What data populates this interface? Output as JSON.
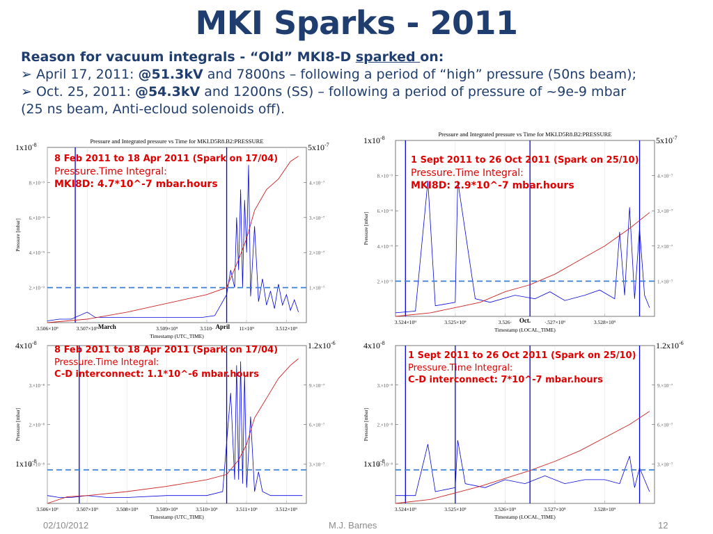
{
  "slide": {
    "title": "MKI Sparks - 2011",
    "intro_lead": "Reason for vacuum integrals - “Old” MKI8-D ",
    "intro_lead_underlined": "sparked ",
    "intro_lead_tail": "on:",
    "bullet1_pre": "➢ April 17, 2011: ",
    "bullet1_bold": "@51.3kV",
    "bullet1_post": " and 7800ns – following a period of “high” pressure (50ns beam);",
    "bullet2_pre": "➢ Oct. 25, 2011: ",
    "bullet2_bold": "@54.3kV",
    "bullet2_post": " and 1200ns (SS) – following a period of pressure of ~9e-9 mbar",
    "bullet2_cont": "(25 ns beam, Anti-ecloud solenoids off).",
    "footer_date": "02/10/2012",
    "footer_author": "M.J. Barnes",
    "footer_page": "12"
  },
  "colors": {
    "title": "#1f3d6e",
    "annotation": "#e00000",
    "pressure": "#0000dd",
    "integral": "#cc2222",
    "threshold": "#3a7fd5"
  },
  "chart_data": [
    {
      "type": "line",
      "id": "tl",
      "title": "Pressure and Integrated pressure vs Time for MKI.D5R8.B2:PRESSURE",
      "xlabel": "Timestamp (UTC_TIME)",
      "ylabel": "Pressure [mbar]",
      "xlim": [
        3506000000.0,
        3512500000.0
      ],
      "ylim": [
        0,
        1e-08
      ],
      "y2lim": [
        0,
        5e-07
      ],
      "xticks": [
        [
          "3.506×10⁹",
          3506000000.0
        ],
        [
          "3.507×10⁹",
          3507000000.0
        ],
        [
          "3.509×10⁹",
          3509000000.0
        ],
        [
          "3.510·",
          3510000000.0
        ],
        [
          "11×10⁹",
          3511000000.0
        ],
        [
          "3.512×10⁹",
          3512000000.0
        ]
      ],
      "yticks": [
        [
          "2.×10⁻⁹",
          2e-09
        ],
        [
          "4.×10⁻⁹",
          4e-09
        ],
        [
          "6.×10⁻⁹",
          6e-09
        ],
        [
          "8.×10⁻⁹",
          8e-09
        ]
      ],
      "y2ticks": [
        [
          "1.×10⁻⁷",
          1e-07
        ],
        [
          "2.×10⁻⁷",
          2e-07
        ],
        [
          "3.×10⁻⁷",
          3e-07
        ],
        [
          "4.×10⁻⁷",
          4e-07
        ]
      ],
      "corner_left": "1x10-8",
      "corner_right": "5x10-7",
      "month_labels": [
        [
          "March",
          3507500000.0
        ],
        [
          "April",
          3510400000.0
        ]
      ],
      "vlines": [
        3506700000.0,
        3510500000.0
      ],
      "threshold": 2e-09,
      "annotation": {
        "header": "8 Feb 2011 to 18 Apr 2011 (Spark on 17/04)",
        "sub": "Pressure.Time Integral:",
        "value": "MKI8D: 4.7*10^-7 mbar.hours"
      },
      "series": [
        {
          "name": "Pressure",
          "kind": "pressure",
          "x": [
            3506000000.0,
            3506300000.0,
            3506600000.0,
            3507000000.0,
            3507200000.0,
            3507600000.0,
            3508000000.0,
            3508500000.0,
            3509000000.0,
            3509500000.0,
            3509900000.0,
            3510200000.0,
            3510500000.0,
            3510600000.0,
            3510700000.0,
            3510750000.0,
            3510800000.0,
            3510850000.0,
            3510900000.0,
            3510950000.0,
            3511000000.0,
            3511050000.0,
            3511100000.0,
            3511200000.0,
            3511300000.0,
            3511400000.0,
            3511500000.0,
            3511600000.0,
            3511700000.0,
            3511800000.0,
            3511900000.0,
            3512000000.0,
            3512100000.0,
            3512200000.0,
            3512300000.0
          ],
          "y": [
            1e-10,
            2e-10,
            2e-10,
            6e-10,
            3e-10,
            3e-10,
            3e-10,
            3e-10,
            3e-10,
            3e-10,
            3e-10,
            4e-10,
            1.6e-09,
            3e-09,
            2e-09,
            6e-09,
            3e-09,
            7.6e-09,
            2e-09,
            7e-09,
            4e-09,
            9e-09,
            1.5e-09,
            5.5e-09,
            1.2e-09,
            2.5e-09,
            1e-09,
            1.8e-09,
            8e-10,
            2.2e-09,
            1e-09,
            1.6e-09,
            7e-10,
            1.3e-09,
            6e-10
          ]
        },
        {
          "name": "Integrated pressure",
          "kind": "integral",
          "x": [
            3506000000.0,
            3507000000.0,
            3508000000.0,
            3509000000.0,
            3510000000.0,
            3510500000.0,
            3510800000.0,
            3511000000.0,
            3511200000.0,
            3511500000.0,
            3511800000.0,
            3512100000.0,
            3512300000.0
          ],
          "y": [
            0,
            1e-08,
            3e-08,
            5.5e-08,
            8e-08,
            1e-07,
            1.8e-07,
            2.4e-07,
            3.2e-07,
            3.8e-07,
            4.1e-07,
            4.6e-07,
            4.75e-07
          ]
        }
      ]
    },
    {
      "type": "line",
      "id": "tr",
      "title": "Pressure and Integrated pressure vs Time for MKI.D5R8.B2:PRESSURE",
      "xlabel": "Timestamp (LOCAL_TIME)",
      "ylabel": "Pressure [mbar]",
      "xlim": [
        3523800000.0,
        3529000000.0
      ],
      "ylim": [
        0,
        1e-08
      ],
      "y2lim": [
        0,
        5e-07
      ],
      "xticks": [
        [
          "3.524×10⁹",
          3524000000.0
        ],
        [
          "3.525×10⁹",
          3525000000.0
        ],
        [
          "3.526·",
          3526000000.0
        ],
        [
          "·.527×10⁹",
          3527000000.0
        ],
        [
          "3.528×10⁹",
          3528000000.0
        ]
      ],
      "yticks": [
        [
          "2.×10⁻⁹",
          2e-09
        ],
        [
          "4.×10⁻⁹",
          4e-09
        ],
        [
          "6.×10⁻⁹",
          6e-09
        ],
        [
          "8.×10⁻⁹",
          8e-09
        ]
      ],
      "y2ticks": [
        [
          "1.×10⁻⁷",
          1e-07
        ],
        [
          "2.×10⁻⁷",
          2e-07
        ],
        [
          "3.×10⁻⁷",
          3e-07
        ],
        [
          "4.×10⁻⁷",
          4e-07
        ]
      ],
      "corner_left": "1x10-8",
      "corner_right": "5x10-7",
      "month_labels": [
        [
          "Oct.",
          3526400000.0
        ]
      ],
      "vlines": [
        3524000000.0,
        3526500000.0,
        3528700000.0
      ],
      "threshold": 2e-09,
      "annotation": {
        "header": "1 Sept 2011 to 26 Oct 2011 (Spark on 25/10)",
        "sub": "Pressure.Time Integral:",
        "value": "MKI8D: 2.9*10^-7 mbar.hours"
      },
      "series": [
        {
          "name": "Pressure",
          "kind": "pressure",
          "x": [
            3523800000.0,
            3524200000.0,
            3524450000.0,
            3524600000.0,
            3525000000.0,
            3525050000.0,
            3525400000.0,
            3525700000.0,
            3526200000.0,
            3526600000.0,
            3526900000.0,
            3527200000.0,
            3527600000.0,
            3527900000.0,
            3528200000.0,
            3528300000.0,
            3528400000.0,
            3528500000.0,
            3528600000.0,
            3528700000.0,
            3528800000.0,
            3528900000.0
          ],
          "y": [
            2e-10,
            3e-10,
            7.7e-09,
            6e-10,
            8e-10,
            7.7e-09,
            1e-09,
            8e-10,
            1.2e-09,
            1e-09,
            1.4e-09,
            9e-10,
            1.2e-09,
            1.5e-09,
            1e-09,
            4.8e-09,
            1.2e-09,
            6.2e-09,
            1e-09,
            5e-09,
            1.2e-09,
            5e-10
          ]
        },
        {
          "name": "Integrated pressure",
          "kind": "integral",
          "x": [
            3523800000.0,
            3524500000.0,
            3525000000.0,
            3525500000.0,
            3526000000.0,
            3526500000.0,
            3527000000.0,
            3527500000.0,
            3528000000.0,
            3528500000.0,
            3528900000.0
          ],
          "y": [
            0,
            1e-08,
            2.5e-08,
            4e-08,
            7e-08,
            9e-08,
            1.2e-07,
            1.6e-07,
            2e-07,
            2.5e-07,
            2.95e-07
          ]
        }
      ]
    },
    {
      "type": "line",
      "id": "bl",
      "title": "",
      "xlabel": "Timestamp (UTC_TIME)",
      "ylabel": "Pressure [mbar]",
      "xlim": [
        3506000000.0,
        3512500000.0
      ],
      "ylim": [
        0,
        4e-08
      ],
      "y2lim": [
        0,
        1.2e-06
      ],
      "xticks": [
        [
          "3.506×10⁹",
          3506000000.0
        ],
        [
          "3.507×10⁹",
          3507000000.0
        ],
        [
          "3.508×10⁹",
          3508000000.0
        ],
        [
          "3.509×10⁹",
          3509000000.0
        ],
        [
          "3.510×10⁹",
          3510000000.0
        ],
        [
          "3.511×10⁹",
          3511000000.0
        ],
        [
          "3.512×10⁹",
          3512000000.0
        ]
      ],
      "yticks": [
        [
          "1.×10⁻⁸",
          1e-08
        ],
        [
          "2.×10⁻⁸",
          2e-08
        ],
        [
          "3.×10⁻⁸",
          3e-08
        ]
      ],
      "y2ticks": [
        [
          "3.×10⁻⁷",
          3e-07
        ],
        [
          "6.×10⁻⁷",
          6e-07
        ],
        [
          "9.×10⁻⁷",
          9e-07
        ]
      ],
      "corner_left": "4x10-8",
      "corner_right": "1.2x10-6",
      "corner_mid": "1x10-8",
      "month_labels": [],
      "vlines": [
        3506800000.0,
        3510500000.0
      ],
      "threshold": 8.5e-09,
      "annotation": {
        "header": "8 Feb 2011 to 18 Apr 2011 (Spark on 17/04)",
        "sub": "Pressure.Time Integral:",
        "value": "C-D interconnect: 1.1*10^-6 mbar.hours"
      },
      "series": [
        {
          "name": "Pressure",
          "kind": "pressure",
          "x": [
            3506000000.0,
            3506300000.0,
            3506600000.0,
            3507000000.0,
            3507500000.0,
            3508000000.0,
            3509000000.0,
            3510000000.0,
            3510400000.0,
            3510600000.0,
            3510700000.0,
            3510750000.0,
            3510800000.0,
            3510850000.0,
            3510900000.0,
            3510950000.0,
            3511000000.0,
            3511100000.0,
            3511200000.0,
            3511300000.0,
            3511400000.0,
            3511600000.0,
            3511800000.0,
            3512000000.0,
            3512200000.0,
            3512400000.0
          ],
          "y": [
            2e-09,
            1.5e-09,
            1.5e-09,
            2e-09,
            1.5e-09,
            1.5e-09,
            2e-09,
            2e-09,
            3e-09,
            2.8e-08,
            6e-09,
            3.5e-08,
            6e-09,
            3.6e-08,
            5e-09,
            3.3e-08,
            4e-09,
            2.2e-08,
            3e-09,
            8e-09,
            3e-09,
            2e-09,
            2e-09,
            2e-09,
            2e-09,
            2e-09
          ]
        },
        {
          "name": "Integrated pressure",
          "kind": "integral",
          "x": [
            3506000000.0,
            3506500000.0,
            3507000000.0,
            3508000000.0,
            3509000000.0,
            3510000000.0,
            3510500000.0,
            3510800000.0,
            3511000000.0,
            3511200000.0,
            3511500000.0,
            3511800000.0,
            3512100000.0,
            3512300000.0
          ],
          "y": [
            0,
            5e-08,
            6e-08,
            9e-08,
            1.3e-07,
            1.8e-07,
            2.2e-07,
            3.3e-07,
            4.5e-07,
            6.5e-07,
            8e-07,
            9.5e-07,
            1.05e-06,
            1.1e-06
          ]
        }
      ]
    },
    {
      "type": "line",
      "id": "br",
      "title": "",
      "xlabel": "Timestamp (LOCAL_TIME)",
      "ylabel": "Pressure [mbar]",
      "xlim": [
        3523800000.0,
        3529000000.0
      ],
      "ylim": [
        0,
        4e-08
      ],
      "y2lim": [
        0,
        1.2e-06
      ],
      "xticks": [
        [
          "3.524×10⁹",
          3524000000.0
        ],
        [
          "3.525×10⁹",
          3525000000.0
        ],
        [
          "3.526×10⁹",
          3526000000.0
        ],
        [
          "3.527×10⁹",
          3527000000.0
        ],
        [
          "3.528×10⁹",
          3528000000.0
        ]
      ],
      "yticks": [
        [
          "1.×10⁻⁸",
          1e-08
        ],
        [
          "2.×10⁻⁸",
          2e-08
        ],
        [
          "3.×10⁻⁸",
          3e-08
        ]
      ],
      "y2ticks": [
        [
          "3.×10⁻⁷",
          3e-07
        ],
        [
          "6.×10⁻⁷",
          6e-07
        ],
        [
          "9.×10⁻⁷",
          9e-07
        ]
      ],
      "corner_left": "4x10-8",
      "corner_right": "1.2x10-6",
      "corner_mid": "1x10-8",
      "month_labels": [],
      "vlines": [
        3524000000.0,
        3525000000.0,
        3526500000.0,
        3528700000.0
      ],
      "threshold": 8.5e-09,
      "annotation": {
        "header": "1 Sept 2011 to 26 Oct 2011 (Spark on 25/10)",
        "sub": "Pressure.Time Integral:",
        "value": "C-D interconnect: 7*10^-7 mbar.hours"
      },
      "series": [
        {
          "name": "Pressure",
          "kind": "pressure",
          "x": [
            3523800000.0,
            3524200000.0,
            3524450000.0,
            3524600000.0,
            3525000000.0,
            3525050000.0,
            3525200000.0,
            3525600000.0,
            3526000000.0,
            3526400000.0,
            3526800000.0,
            3527200000.0,
            3527600000.0,
            3528000000.0,
            3528300000.0,
            3528500000.0,
            3528600000.0,
            3528700000.0,
            3528900000.0
          ],
          "y": [
            2e-09,
            2e-09,
            1.5e-08,
            3e-09,
            4e-09,
            1.6e-08,
            5e-09,
            4e-09,
            6e-09,
            5e-09,
            7e-09,
            5e-09,
            6e-09,
            6e-09,
            5e-09,
            1.2e-08,
            4e-09,
            9e-09,
            3e-09
          ]
        },
        {
          "name": "Integrated pressure",
          "kind": "integral",
          "x": [
            3523800000.0,
            3524500000.0,
            3525000000.0,
            3525500000.0,
            3526000000.0,
            3526500000.0,
            3527000000.0,
            3527500000.0,
            3528000000.0,
            3528500000.0,
            3528900000.0
          ],
          "y": [
            0,
            3e-08,
            8e-08,
            1.3e-07,
            1.9e-07,
            2.5e-07,
            3.2e-07,
            4e-07,
            5e-07,
            6e-07,
            7e-07
          ]
        }
      ]
    }
  ]
}
